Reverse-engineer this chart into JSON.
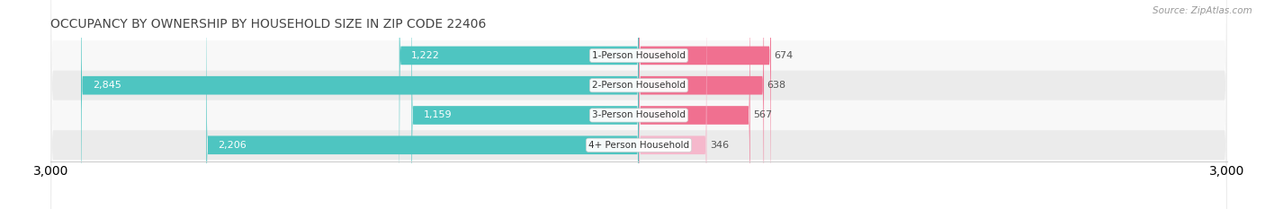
{
  "title": "OCCUPANCY BY OWNERSHIP BY HOUSEHOLD SIZE IN ZIP CODE 22406",
  "source": "Source: ZipAtlas.com",
  "categories": [
    "1-Person Household",
    "2-Person Household",
    "3-Person Household",
    "4+ Person Household"
  ],
  "owner_values": [
    1222,
    2845,
    1159,
    2206
  ],
  "renter_values": [
    674,
    638,
    567,
    346
  ],
  "owner_color": "#4ec5c1",
  "renter_colors": [
    "#f07090",
    "#f07090",
    "#f07090",
    "#f5b8cc"
  ],
  "row_bg_colors": [
    "#f5f5f5",
    "#e8e8e8",
    "#f5f5f5",
    "#e8e8e8"
  ],
  "row_bg_light": "#fafafa",
  "xlim": 3000,
  "title_fontsize": 10,
  "axis_fontsize": 9,
  "bar_label_fontsize": 8,
  "category_fontsize": 7.5,
  "legend_fontsize": 8.5
}
